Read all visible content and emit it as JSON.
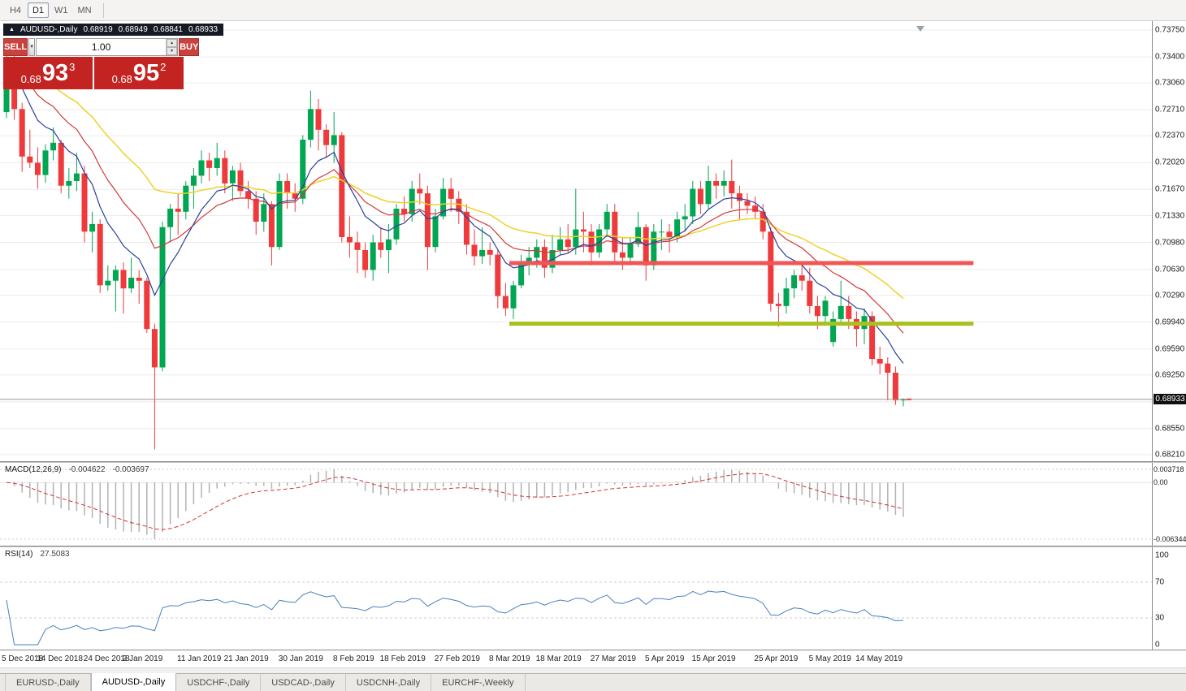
{
  "toolbar": {
    "timeframes": [
      {
        "label": "H4",
        "active": false
      },
      {
        "label": "D1",
        "active": true
      },
      {
        "label": "W1",
        "active": false
      },
      {
        "label": "MN",
        "active": false
      }
    ]
  },
  "chart_header": {
    "collapse_icon": "▲",
    "symbol": "AUDUSD-,Daily",
    "open": "0.68919",
    "high": "0.68949",
    "low": "0.68841",
    "close": "0.68933"
  },
  "trade_panel": {
    "sell_label": "SELL",
    "buy_label": "BUY",
    "volume": "1.00",
    "dropdown_icon": "▼",
    "spinner_up_icon": "▲",
    "spinner_down_icon": "▼",
    "bid": {
      "prefix": "0.68",
      "big": "93",
      "sup": "3"
    },
    "ask": {
      "prefix": "0.68",
      "big": "95",
      "sup": "2"
    }
  },
  "price_axis_labels": [
    "0.73750",
    "0.73400",
    "0.73060",
    "0.72710",
    "0.72370",
    "0.72020",
    "0.71670",
    "0.71330",
    "0.70980",
    "0.70630",
    "0.70290",
    "0.69940",
    "0.69590",
    "0.69250",
    "0.68900",
    "0.68550",
    "0.68210"
  ],
  "current_price_badge": "0.68933",
  "macd_panel": {
    "label": "MACD(12,26,9)",
    "value_macd": "-0.004622",
    "value_signal": "-0.003697",
    "axis_top": "0.003718",
    "axis_zero": "0.00",
    "axis_bottom": "-0.006344"
  },
  "rsi_panel": {
    "label": "RSI(14)",
    "value": "27.5083",
    "axis": [
      "100",
      "70",
      "30",
      "0"
    ]
  },
  "tabs": [
    {
      "label": "EURUSD-,Daily",
      "active": false
    },
    {
      "label": "AUDUSD-,Daily",
      "active": true
    },
    {
      "label": "USDCHF-,Daily",
      "active": false
    },
    {
      "label": "USDCAD-,Daily",
      "active": false
    },
    {
      "label": "USDCNH-,Daily",
      "active": false
    },
    {
      "label": "EURCHF-,Weekly",
      "active": false
    }
  ],
  "colors": {
    "bull": "#00a651",
    "bear": "#ef3a3c",
    "resistance_line": "#f25555",
    "support_line": "#a9c11e",
    "ma_fast_blue": "#2b3f9e",
    "ma_mid_red": "#d23939",
    "ma_slow_yellow": "#ecd32a",
    "macd_hist": "#b2b2b2",
    "macd_signal": "#d03535",
    "rsi_line": "#4a7fbe",
    "trade_button_red": "#c9423e",
    "price_box_red": "#c32422",
    "badge_bg": "#101010",
    "grid": "#ebebeb",
    "current_price_line": "#9a9a9a",
    "level_dash": "#cccccc"
  },
  "chart_data": {
    "type": "candlestick",
    "title": "AUDUSD-,Daily",
    "symbol": "AUDUSD",
    "timeframe": "D1",
    "last_ohlc": {
      "open": 0.68919,
      "high": 0.68949,
      "low": 0.68841,
      "close": 0.68933
    },
    "current_price": 0.68933,
    "y_axis": {
      "ticks": [
        0.7375,
        0.734,
        0.7306,
        0.7271,
        0.7237,
        0.7202,
        0.7167,
        0.7133,
        0.7098,
        0.7063,
        0.7029,
        0.6994,
        0.6959,
        0.6925,
        0.689,
        0.6855,
        0.6821
      ]
    },
    "x_labels": [
      {
        "label": "5 Dec 2018",
        "index": 0
      },
      {
        "label": "14 Dec 2018",
        "index": 7
      },
      {
        "label": "24 Dec 2018",
        "index": 13
      },
      {
        "label": "2 Jan 2019",
        "index": 18
      },
      {
        "label": "11 Jan 2019",
        "index": 25
      },
      {
        "label": "21 Jan 2019",
        "index": 31
      },
      {
        "label": "30 Jan 2019",
        "index": 38
      },
      {
        "label": "8 Feb 2019",
        "index": 45
      },
      {
        "label": "18 Feb 2019",
        "index": 51
      },
      {
        "label": "27 Feb 2019",
        "index": 58
      },
      {
        "label": "8 Mar 2019",
        "index": 65
      },
      {
        "label": "18 Mar 2019",
        "index": 71
      },
      {
        "label": "27 Mar 2019",
        "index": 78
      },
      {
        "label": "5 Apr 2019",
        "index": 85
      },
      {
        "label": "15 Apr 2019",
        "index": 91
      },
      {
        "label": "25 Apr 2019",
        "index": 99
      },
      {
        "label": "5 May 2019",
        "index": 106
      },
      {
        "label": "14 May 2019",
        "index": 112
      }
    ],
    "ohlc": [
      [
        0.7268,
        0.735,
        0.726,
        0.734
      ],
      [
        0.734,
        0.7348,
        0.7258,
        0.7272
      ],
      [
        0.7272,
        0.728,
        0.719,
        0.721
      ],
      [
        0.721,
        0.7245,
        0.7195,
        0.7202
      ],
      [
        0.7202,
        0.7222,
        0.7168,
        0.7186
      ],
      [
        0.7186,
        0.7226,
        0.7176,
        0.7218
      ],
      [
        0.7218,
        0.7248,
        0.7205,
        0.7228
      ],
      [
        0.7228,
        0.7232,
        0.7162,
        0.7172
      ],
      [
        0.7172,
        0.7195,
        0.7155,
        0.7178
      ],
      [
        0.7178,
        0.7215,
        0.7165,
        0.7188
      ],
      [
        0.7188,
        0.7198,
        0.7098,
        0.7112
      ],
      [
        0.7112,
        0.7138,
        0.7085,
        0.7122
      ],
      [
        0.7122,
        0.7128,
        0.7032,
        0.7042
      ],
      [
        0.7042,
        0.7068,
        0.7035,
        0.7048
      ],
      [
        0.7048,
        0.7068,
        0.7008,
        0.7062
      ],
      [
        0.7062,
        0.7072,
        0.7005,
        0.7038
      ],
      [
        0.7038,
        0.7078,
        0.7032,
        0.7052
      ],
      [
        0.7052,
        0.7062,
        0.7018,
        0.7048
      ],
      [
        0.7048,
        0.7052,
        0.698,
        0.6985
      ],
      [
        0.6985,
        0.6992,
        0.6828,
        0.6935
      ],
      [
        0.6935,
        0.7125,
        0.693,
        0.7118
      ],
      [
        0.7118,
        0.7148,
        0.7098,
        0.7142
      ],
      [
        0.7142,
        0.7162,
        0.7108,
        0.7138
      ],
      [
        0.7138,
        0.7178,
        0.7128,
        0.7172
      ],
      [
        0.7172,
        0.7195,
        0.7142,
        0.7185
      ],
      [
        0.7185,
        0.7218,
        0.7175,
        0.7205
      ],
      [
        0.7205,
        0.7215,
        0.7178,
        0.7195
      ],
      [
        0.7195,
        0.7228,
        0.7185,
        0.7208
      ],
      [
        0.7208,
        0.7218,
        0.7162,
        0.7175
      ],
      [
        0.7175,
        0.7198,
        0.7152,
        0.7192
      ],
      [
        0.7192,
        0.7202,
        0.7158,
        0.7165
      ],
      [
        0.7165,
        0.7178,
        0.7142,
        0.7155
      ],
      [
        0.7155,
        0.7165,
        0.7108,
        0.7125
      ],
      [
        0.7125,
        0.7162,
        0.7112,
        0.7148
      ],
      [
        0.7148,
        0.7152,
        0.7068,
        0.7092
      ],
      [
        0.7092,
        0.7188,
        0.7088,
        0.7178
      ],
      [
        0.7178,
        0.7188,
        0.7142,
        0.7162
      ],
      [
        0.7162,
        0.7175,
        0.7138,
        0.7155
      ],
      [
        0.7155,
        0.7238,
        0.7148,
        0.7232
      ],
      [
        0.7232,
        0.7296,
        0.7222,
        0.7272
      ],
      [
        0.7272,
        0.7285,
        0.7218,
        0.7245
      ],
      [
        0.7245,
        0.7252,
        0.7208,
        0.7225
      ],
      [
        0.7225,
        0.7268,
        0.7202,
        0.7238
      ],
      [
        0.7238,
        0.7242,
        0.7098,
        0.7105
      ],
      [
        0.7105,
        0.7132,
        0.7078,
        0.7098
      ],
      [
        0.7098,
        0.7112,
        0.7058,
        0.7088
      ],
      [
        0.7088,
        0.7098,
        0.7052,
        0.7062
      ],
      [
        0.7062,
        0.7108,
        0.7048,
        0.7098
      ],
      [
        0.7098,
        0.7118,
        0.7078,
        0.7088
      ],
      [
        0.7088,
        0.7122,
        0.7058,
        0.7102
      ],
      [
        0.7102,
        0.7148,
        0.7095,
        0.7142
      ],
      [
        0.7142,
        0.7158,
        0.7125,
        0.7135
      ],
      [
        0.7135,
        0.7178,
        0.7125,
        0.7168
      ],
      [
        0.7168,
        0.7188,
        0.7148,
        0.7162
      ],
      [
        0.7162,
        0.7172,
        0.7062,
        0.7092
      ],
      [
        0.7092,
        0.7142,
        0.7085,
        0.7132
      ],
      [
        0.7132,
        0.7182,
        0.7128,
        0.7168
      ],
      [
        0.7168,
        0.7182,
        0.7138,
        0.7155
      ],
      [
        0.7155,
        0.7165,
        0.7122,
        0.7138
      ],
      [
        0.7138,
        0.7148,
        0.7082,
        0.7095
      ],
      [
        0.7095,
        0.7115,
        0.7068,
        0.708
      ],
      [
        0.708,
        0.7118,
        0.707,
        0.7088
      ],
      [
        0.7088,
        0.7098,
        0.7068,
        0.7082
      ],
      [
        0.7082,
        0.7088,
        0.7012,
        0.7028
      ],
      [
        0.7028,
        0.7045,
        0.7002,
        0.7012
      ],
      [
        0.7012,
        0.7048,
        0.6998,
        0.7042
      ],
      [
        0.7042,
        0.7082,
        0.7038,
        0.7072
      ],
      [
        0.7072,
        0.7092,
        0.7055,
        0.7078
      ],
      [
        0.7078,
        0.7102,
        0.7065,
        0.7092
      ],
      [
        0.7092,
        0.7102,
        0.7052,
        0.7065
      ],
      [
        0.7065,
        0.7108,
        0.7058,
        0.7088
      ],
      [
        0.7088,
        0.7118,
        0.7082,
        0.7102
      ],
      [
        0.7102,
        0.7122,
        0.7085,
        0.7092
      ],
      [
        0.7092,
        0.7168,
        0.7082,
        0.7115
      ],
      [
        0.7115,
        0.7138,
        0.7085,
        0.7112
      ],
      [
        0.7112,
        0.7122,
        0.7068,
        0.7085
      ],
      [
        0.7085,
        0.7122,
        0.7078,
        0.7115
      ],
      [
        0.7115,
        0.7148,
        0.7105,
        0.7138
      ],
      [
        0.7138,
        0.7148,
        0.7072,
        0.7085
      ],
      [
        0.7085,
        0.7105,
        0.7062,
        0.7078
      ],
      [
        0.7078,
        0.7105,
        0.7068,
        0.7096
      ],
      [
        0.7096,
        0.7138,
        0.7092,
        0.7118
      ],
      [
        0.7118,
        0.7122,
        0.7048,
        0.7068
      ],
      [
        0.7068,
        0.7122,
        0.7062,
        0.7112
      ],
      [
        0.7112,
        0.7128,
        0.7088,
        0.7112
      ],
      [
        0.7112,
        0.7122,
        0.7085,
        0.7105
      ],
      [
        0.7105,
        0.7138,
        0.7098,
        0.7128
      ],
      [
        0.7128,
        0.7148,
        0.7112,
        0.7132
      ],
      [
        0.7132,
        0.7178,
        0.7122,
        0.7168
      ],
      [
        0.7168,
        0.7178,
        0.7135,
        0.7148
      ],
      [
        0.7148,
        0.7198,
        0.7142,
        0.7178
      ],
      [
        0.7178,
        0.7188,
        0.7155,
        0.7172
      ],
      [
        0.7172,
        0.7192,
        0.7158,
        0.7178
      ],
      [
        0.7178,
        0.7206,
        0.7142,
        0.7162
      ],
      [
        0.7162,
        0.7172,
        0.7128,
        0.7152
      ],
      [
        0.7152,
        0.7162,
        0.7135,
        0.7146
      ],
      [
        0.7146,
        0.7158,
        0.7128,
        0.7138
      ],
      [
        0.7138,
        0.7148,
        0.7102,
        0.7112
      ],
      [
        0.7112,
        0.7118,
        0.7008,
        0.7018
      ],
      [
        0.7018,
        0.7032,
        0.6988,
        0.7015
      ],
      [
        0.7015,
        0.7052,
        0.7005,
        0.7038
      ],
      [
        0.7038,
        0.7062,
        0.7025,
        0.7055
      ],
      [
        0.7055,
        0.7072,
        0.7035,
        0.7048
      ],
      [
        0.7048,
        0.7065,
        0.7005,
        0.7015
      ],
      [
        0.7015,
        0.7028,
        0.6985,
        0.7002
      ],
      [
        0.7002,
        0.7028,
        0.6992,
        0.7022
      ],
      [
        0.6968,
        0.7008,
        0.6962,
        0.6998
      ],
      [
        0.6998,
        0.7048,
        0.6992,
        0.7015
      ],
      [
        0.7015,
        0.7028,
        0.6985,
        0.6998
      ],
      [
        0.6998,
        0.7008,
        0.6962,
        0.6985
      ],
      [
        0.6985,
        0.7012,
        0.6965,
        0.7002
      ],
      [
        0.7002,
        0.7008,
        0.6938,
        0.6946
      ],
      [
        0.6946,
        0.6962,
        0.6926,
        0.694
      ],
      [
        0.694,
        0.6948,
        0.6892,
        0.6928
      ],
      [
        0.6928,
        0.6936,
        0.6886,
        0.6892
      ],
      [
        0.68919,
        0.68949,
        0.68841,
        0.68933
      ]
    ],
    "objects": {
      "hlines": [
        {
          "name": "resistance",
          "price": 0.7071,
          "color_key": "resistance_line",
          "width": 5,
          "from_index": 65,
          "to_index": 124
        },
        {
          "name": "support",
          "price": 0.6992,
          "color_key": "support_line",
          "width": 5,
          "from_index": 65,
          "to_index": 124
        }
      ]
    },
    "moving_averages": [
      {
        "name": "ma-slow",
        "period": 32,
        "color_key": "ma_slow_yellow"
      },
      {
        "name": "ma-mid",
        "period": 16,
        "color_key": "ma_mid_red"
      },
      {
        "name": "ma-fast",
        "period": 8,
        "color_key": "ma_fast_blue"
      }
    ],
    "indicators": [
      {
        "type": "macd",
        "fast": 12,
        "slow": 26,
        "signal": 9,
        "last_macd": -0.004622,
        "last_signal": -0.003697,
        "scale_top": 0.003718,
        "scale_bottom": -0.006344
      },
      {
        "type": "rsi",
        "period": 14,
        "last_value": 27.5083,
        "levels": [
          70,
          30
        ],
        "range": [
          0,
          100
        ]
      }
    ]
  }
}
